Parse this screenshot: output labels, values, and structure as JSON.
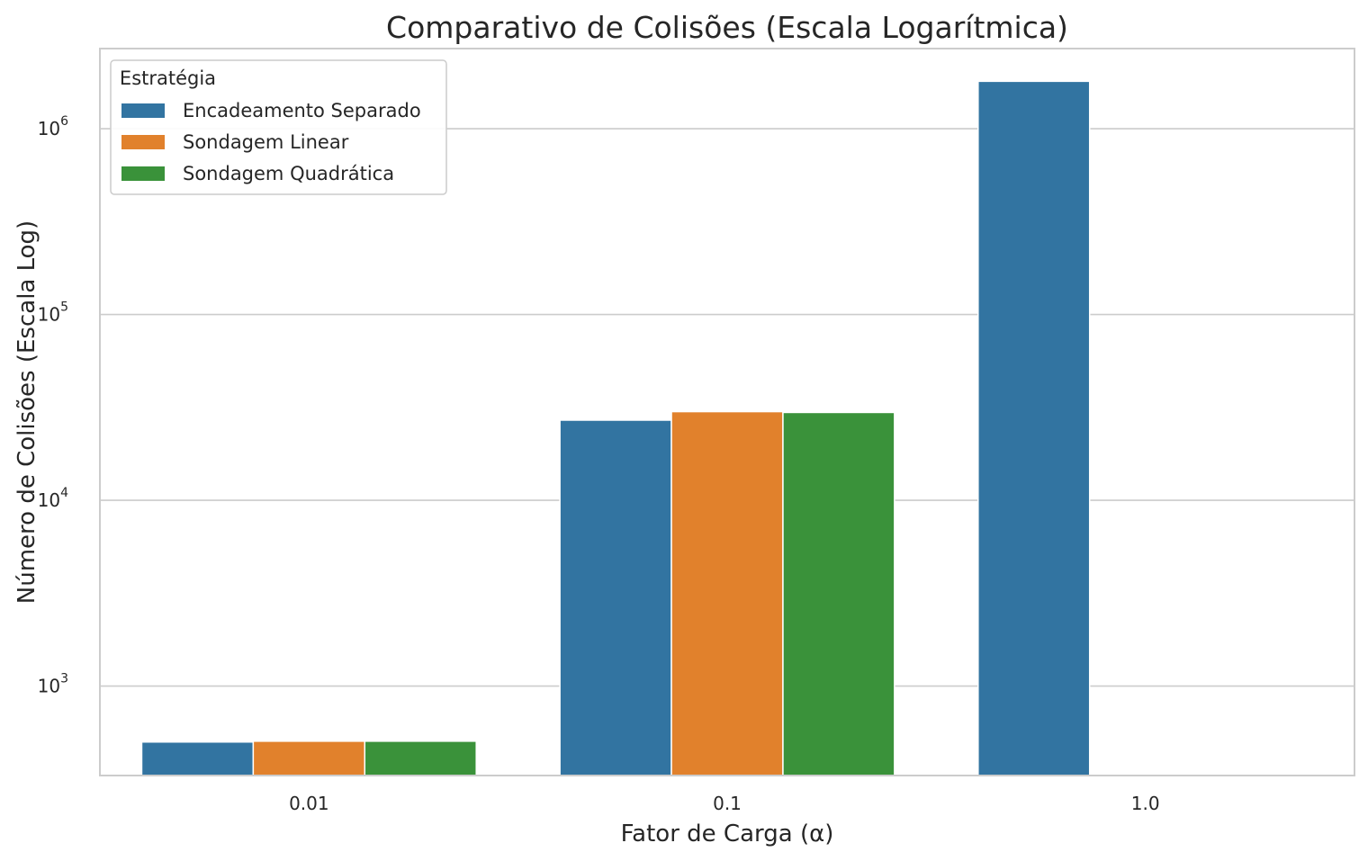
{
  "chart_data": {
    "type": "bar",
    "title": "Comparativo de Colisões (Escala Logarítmica)",
    "xlabel": "Fator de Carga (α)",
    "ylabel": "Número de Colisões (Escala Log)",
    "yscale": "log",
    "ylim": [
      330,
      2700000
    ],
    "yticks": [
      {
        "value": 1000,
        "base": "10",
        "exp": "3"
      },
      {
        "value": 10000,
        "base": "10",
        "exp": "4"
      },
      {
        "value": 100000,
        "base": "10",
        "exp": "5"
      },
      {
        "value": 1000000,
        "base": "10",
        "exp": "6"
      }
    ],
    "grid": "horizontal",
    "categories": [
      "0.01",
      "0.1",
      "1.0"
    ],
    "legend": {
      "title": "Estratégia",
      "position": "top-left"
    },
    "series": [
      {
        "name": "Encadeamento Separado",
        "color": "#3274a1",
        "values": [
          500,
          27000,
          1800000
        ]
      },
      {
        "name": "Sondagem Linear",
        "color": "#e1812c",
        "values": [
          505,
          30000,
          null
        ]
      },
      {
        "name": "Sondagem Quadrática",
        "color": "#3a923a",
        "values": [
          505,
          29700,
          null
        ]
      }
    ]
  }
}
